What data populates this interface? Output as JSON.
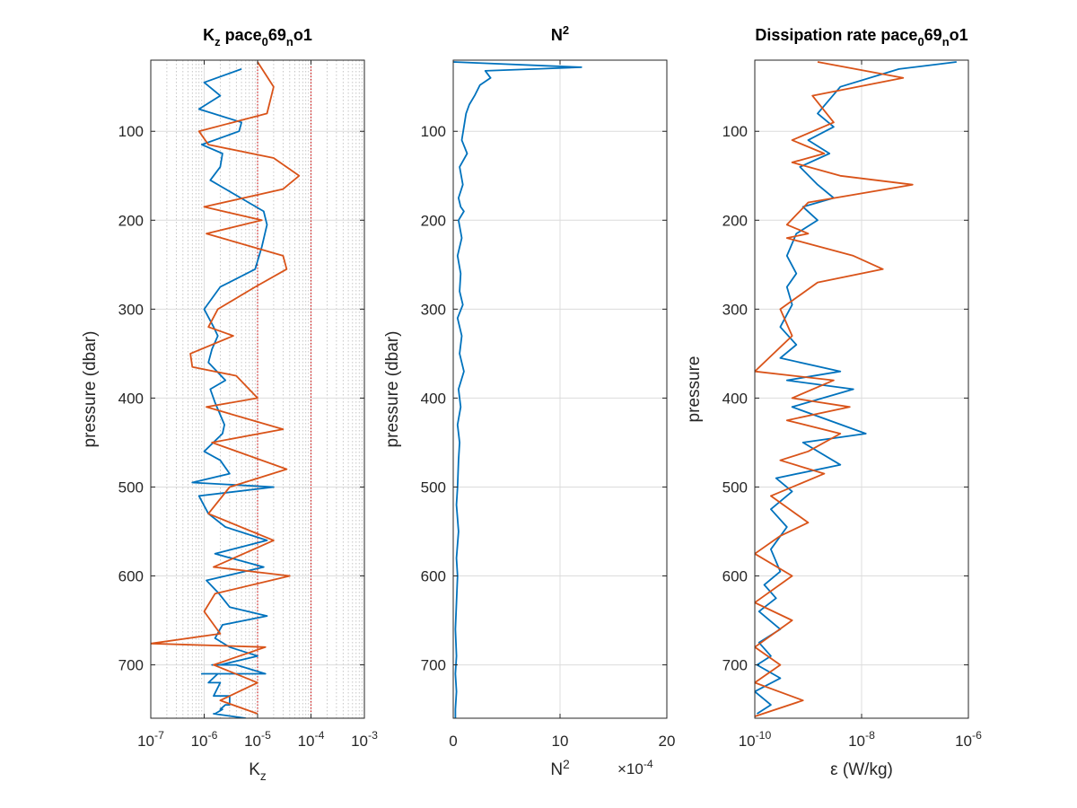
{
  "figure": {
    "background": "#ffffff",
    "series_colors": [
      "#0072BD",
      "#D95319"
    ],
    "reference_line_color": "#cc0000"
  },
  "chart_data": [
    {
      "type": "line",
      "title": "K_z pace_069_no1",
      "title_parts": [
        [
          "K",
          ""
        ],
        [
          "z",
          "sub"
        ],
        [
          " pace",
          ""
        ],
        [
          "0",
          "sub"
        ],
        [
          "69",
          ""
        ],
        [
          "n",
          "sub"
        ],
        [
          "o1",
          ""
        ]
      ],
      "xlabel": "K_z",
      "xlabel_parts": [
        [
          "K",
          ""
        ],
        [
          "z",
          "sub"
        ]
      ],
      "ylabel": "pressure (dbar)",
      "xscale": "log",
      "xlim": [
        1e-07,
        0.001
      ],
      "ylim": [
        20,
        760
      ],
      "y_reversed": true,
      "grid": true,
      "minor_grid": true,
      "xticks": [
        1e-07,
        1e-06,
        1e-05,
        0.0001,
        0.001
      ],
      "xtick_labels": [
        [
          "10",
          "-7"
        ],
        [
          "10",
          "-6"
        ],
        [
          "10",
          "-5"
        ],
        [
          "10",
          "-4"
        ],
        [
          "10",
          "-3"
        ]
      ],
      "yticks": [
        100,
        200,
        300,
        400,
        500,
        600,
        700
      ],
      "ytick_labels": [
        "100",
        "200",
        "300",
        "400",
        "500",
        "600",
        "700"
      ],
      "reference_lines_x": [
        1e-05,
        0.0001
      ],
      "series": [
        {
          "color": "#0072BD",
          "x": [
            5e-06,
            1e-06,
            2e-06,
            8e-07,
            5e-06,
            4.5e-06,
            9e-07,
            2.2e-06,
            2e-06,
            1.3e-06,
            3.5e-06,
            1.3e-05,
            1.5e-05,
            1.2e-05,
            9e-06,
            2e-06,
            1e-06,
            1.5e-06,
            1.8e-06,
            1.4e-06,
            1.2e-06,
            2.5e-06,
            1.3e-06,
            1.6e-06,
            2.4e-06,
            2.2e-06,
            1e-06,
            2e-06,
            3e-06,
            6e-07,
            2e-05,
            8e-07,
            1.2e-06,
            2.5e-06,
            1.5e-05,
            1.6e-06,
            1.3e-05,
            1.1e-06,
            1.9e-06,
            3e-06,
            1.5e-05,
            2.2e-06,
            1.6e-06,
            3e-06,
            1e-05,
            2e-06,
            1.4e-05,
            1.2e-06,
            1.5e-06,
            3e-06,
            1.6e-06,
            1.4e-06,
            9e-07,
            1.3e-06,
            3e-06,
            2.5e-06,
            2e-06,
            1.5e-06,
            4e-06,
            1.8e-06,
            2e-06,
            3e-06,
            2.5e-06,
            2.2e-06,
            1.5e-06,
            6e-06
          ],
          "y": [
            30,
            45,
            60,
            75,
            90,
            100,
            115,
            125,
            140,
            155,
            170,
            190,
            205,
            230,
            255,
            275,
            300,
            320,
            330,
            345,
            360,
            380,
            390,
            405,
            430,
            440,
            460,
            470,
            485,
            495,
            500,
            510,
            530,
            545,
            560,
            575,
            590,
            605,
            620,
            635,
            645,
            655,
            670,
            680,
            690,
            700,
            710,
            720,
            735,
            745,
            755,
            700,
            710,
            720,
            735,
            745,
            750,
            755,
            700,
            710,
            720,
            735,
            745,
            750,
            755,
            760
          ]
        },
        {
          "color": "#D95319",
          "x": [
            1e-05,
            2e-05,
            1.5e-05,
            8e-07,
            1.2e-06,
            2e-05,
            6e-05,
            3e-05,
            1e-06,
            1.2e-05,
            1.1e-06,
            3e-05,
            3.5e-05,
            9e-06,
            1.8e-06,
            1.2e-06,
            3.5e-06,
            5.5e-07,
            6e-07,
            4e-06,
            1e-05,
            1.1e-06,
            3e-05,
            1.4e-06,
            3.5e-05,
            3e-06,
            1.2e-06,
            2e-05,
            1.5e-06,
            4e-05,
            1.6e-06,
            1e-06,
            2e-06,
            1e-07,
            1.4e-05,
            1.5e-06,
            1e-05,
            2e-06,
            1e-05
          ],
          "y": [
            22,
            50,
            80,
            100,
            115,
            130,
            150,
            165,
            185,
            200,
            215,
            240,
            255,
            275,
            300,
            320,
            330,
            350,
            365,
            375,
            400,
            410,
            435,
            450,
            480,
            500,
            530,
            560,
            590,
            600,
            620,
            640,
            665,
            676,
            680,
            700,
            720,
            740,
            755
          ]
        }
      ]
    },
    {
      "type": "line",
      "title": "N^2",
      "title_parts": [
        [
          "N",
          ""
        ],
        [
          "2",
          "sup"
        ]
      ],
      "xlabel": "N^2",
      "xlabel_parts": [
        [
          "N",
          ""
        ],
        [
          "2",
          "sup"
        ]
      ],
      "ylabel": "pressure (dbar)",
      "xscale": "linear",
      "xlim": [
        0,
        20
      ],
      "ylim": [
        20,
        760
      ],
      "y_reversed": true,
      "grid": true,
      "xticks": [
        0,
        10,
        20
      ],
      "xtick_labels": [
        "0",
        "10",
        "20"
      ],
      "x_exponent_parts": [
        [
          "×10",
          ""
        ],
        [
          "-4",
          "sup"
        ]
      ],
      "yticks": [
        100,
        200,
        300,
        400,
        500,
        600,
        700
      ],
      "ytick_labels": [
        "100",
        "200",
        "300",
        "400",
        "500",
        "600",
        "700"
      ],
      "series": [
        {
          "color": "#0072BD",
          "x": [
            0,
            12.0,
            3.0,
            3.5,
            2.5,
            2.0,
            1.5,
            1.2,
            1.0,
            0.8,
            1.3,
            0.6,
            0.9,
            0.5,
            0.7,
            1.0,
            0.5,
            0.8,
            0.4,
            0.7,
            0.6,
            0.9,
            0.4,
            0.8,
            0.6,
            1.0,
            0.5,
            0.7,
            0.4,
            0.6,
            0.5,
            0.4,
            0.3,
            0.5,
            0.3,
            0.4,
            0.3,
            0.2,
            0.3,
            0.2,
            0.3,
            0.2,
            0.2
          ],
          "y": [
            22,
            28,
            32,
            40,
            48,
            60,
            70,
            80,
            95,
            110,
            125,
            140,
            160,
            175,
            185,
            190,
            200,
            220,
            240,
            260,
            280,
            295,
            310,
            330,
            350,
            370,
            390,
            410,
            430,
            450,
            470,
            500,
            520,
            550,
            580,
            600,
            630,
            660,
            690,
            710,
            730,
            750,
            760
          ]
        }
      ]
    },
    {
      "type": "line",
      "title": "Dissipation rate pace_069_no1",
      "title_parts": [
        [
          "Dissipation rate pace",
          ""
        ],
        [
          "0",
          "sub"
        ],
        [
          "69",
          ""
        ],
        [
          "n",
          "sub"
        ],
        [
          "o1",
          ""
        ]
      ],
      "xlabel": "ε (W/kg)",
      "xlabel_parts": [
        [
          "ε (W/kg)",
          ""
        ]
      ],
      "ylabel": "pressure",
      "xscale": "log",
      "xlim": [
        1e-10,
        1e-06
      ],
      "ylim": [
        20,
        760
      ],
      "y_reversed": true,
      "grid": true,
      "xticks": [
        1e-10,
        1e-08,
        1e-06
      ],
      "xtick_labels": [
        [
          "10",
          "-10"
        ],
        [
          "10",
          "-8"
        ],
        [
          "10",
          "-6"
        ]
      ],
      "yticks": [
        100,
        200,
        300,
        400,
        500,
        600,
        700
      ],
      "ytick_labels": [
        "100",
        "200",
        "300",
        "400",
        "500",
        "600",
        "700"
      ],
      "series": [
        {
          "color": "#0072BD",
          "x": [
            6e-07,
            5e-08,
            4e-09,
            1.5e-09,
            3e-09,
            1e-09,
            2.5e-09,
            7e-10,
            1.5e-09,
            3e-09,
            8e-10,
            1.5e-09,
            6e-10,
            4e-10,
            6e-10,
            4e-10,
            5e-10,
            3e-10,
            6e-10,
            3e-10,
            4e-09,
            4e-10,
            7e-09,
            5e-10,
            1.2e-08,
            8e-10,
            4e-09,
            2.5e-10,
            5e-10,
            2e-10,
            4e-10,
            2e-10,
            3e-10,
            1.5e-10,
            2.5e-10,
            1.2e-10,
            3e-10,
            1.2e-10,
            2e-10,
            1.1e-10,
            3e-10,
            1e-10,
            2e-10,
            1.1e-10
          ],
          "y": [
            22,
            30,
            50,
            80,
            95,
            110,
            125,
            140,
            160,
            175,
            185,
            200,
            215,
            240,
            260,
            275,
            295,
            320,
            340,
            355,
            370,
            380,
            390,
            410,
            440,
            450,
            475,
            490,
            505,
            525,
            545,
            570,
            595,
            610,
            625,
            640,
            660,
            675,
            690,
            700,
            715,
            730,
            745,
            755
          ]
        },
        {
          "color": "#D95319",
          "x": [
            1.5e-09,
            6e-08,
            1.2e-09,
            3e-09,
            5e-10,
            2e-09,
            5e-10,
            4e-09,
            9e-08,
            1e-09,
            4e-10,
            1e-09,
            4e-10,
            7e-09,
            2.5e-08,
            1.5e-09,
            3e-10,
            5e-10,
            1e-10,
            3e-09,
            5e-10,
            6e-09,
            4e-10,
            4e-09,
            1e-09,
            3e-10,
            2e-09,
            2e-10,
            1e-09,
            3e-10,
            1e-10,
            5e-10,
            1e-10,
            5e-10,
            1e-10,
            3e-10,
            1e-10,
            8e-10,
            1e-10
          ],
          "y": [
            22,
            40,
            60,
            90,
            110,
            125,
            135,
            150,
            160,
            180,
            205,
            215,
            220,
            240,
            255,
            270,
            300,
            330,
            370,
            380,
            400,
            410,
            425,
            440,
            460,
            470,
            485,
            510,
            540,
            555,
            575,
            600,
            630,
            650,
            680,
            700,
            720,
            740,
            758
          ]
        }
      ]
    }
  ]
}
